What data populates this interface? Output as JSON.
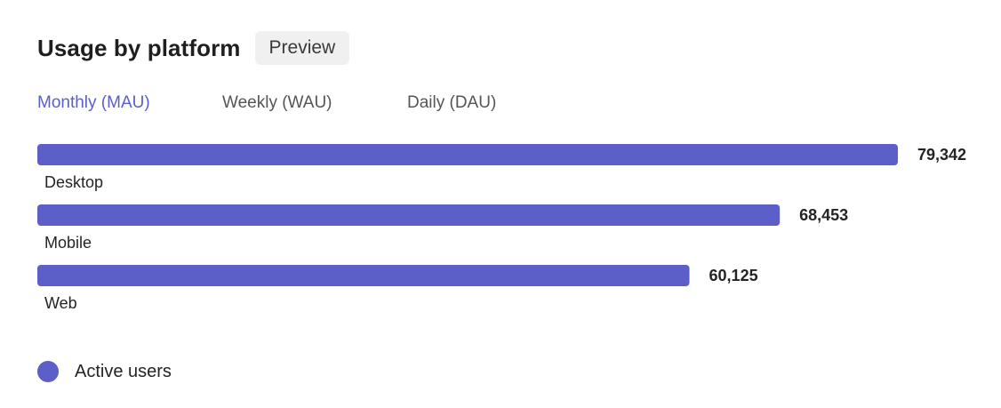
{
  "header": {
    "title": "Usage by platform",
    "badge": "Preview"
  },
  "tabs": [
    {
      "label": "Monthly (MAU)",
      "active": true
    },
    {
      "label": "Weekly (WAU)",
      "active": false
    },
    {
      "label": "Daily (DAU)",
      "active": false
    }
  ],
  "colors": {
    "accent": "#5b5fc7"
  },
  "legend": {
    "label": "Active users"
  },
  "chart_data": {
    "type": "bar",
    "orientation": "horizontal",
    "categories": [
      "Desktop",
      "Mobile",
      "Web"
    ],
    "values": [
      79342,
      68453,
      60125
    ],
    "value_labels": [
      "79,342",
      "68,453",
      "60,125"
    ],
    "series": [
      {
        "name": "Active users",
        "values": [
          79342,
          68453,
          60125
        ],
        "color": "#5b5fc7"
      }
    ],
    "title": "",
    "xlabel": "",
    "ylabel": "",
    "xlim": [
      0,
      79342
    ],
    "grid": false,
    "legend_position": "bottom-left"
  }
}
